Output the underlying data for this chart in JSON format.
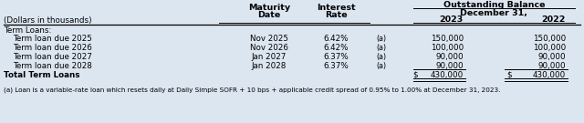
{
  "bg_color": "#dce6f1",
  "title_text": "Outstanding Balance",
  "subtitle_text": "December 31,",
  "col_label": "(Dollars in thousands)",
  "section_label": "Term Loans:",
  "rows": [
    [
      "Term loan due 2025",
      "Nov 2025",
      "6.42%",
      "(a)",
      "150,000",
      "150,000"
    ],
    [
      "Term loan due 2026",
      "Nov 2026",
      "6.42%",
      "(a)",
      "100,000",
      "100,000"
    ],
    [
      "Term loan due 2027",
      "Jan 2027",
      "6.37%",
      "(a)",
      "90,000",
      "90,000"
    ],
    [
      "Term loan due 2028",
      "Jan 2028",
      "6.37%",
      "(a)",
      "90,000",
      "90,000"
    ]
  ],
  "total_row": [
    "Total Term Loans",
    "",
    "",
    "",
    "430,000",
    "430,000"
  ],
  "footnote": "(a) Loan is a variable-rate loan which resets daily at Daily Simple SOFR + 10 bps + applicable credit spread of 0.95% to 1.00% at December 31, 2023.",
  "fs_header": 6.8,
  "fs_body": 6.3,
  "fs_footnote": 5.2
}
